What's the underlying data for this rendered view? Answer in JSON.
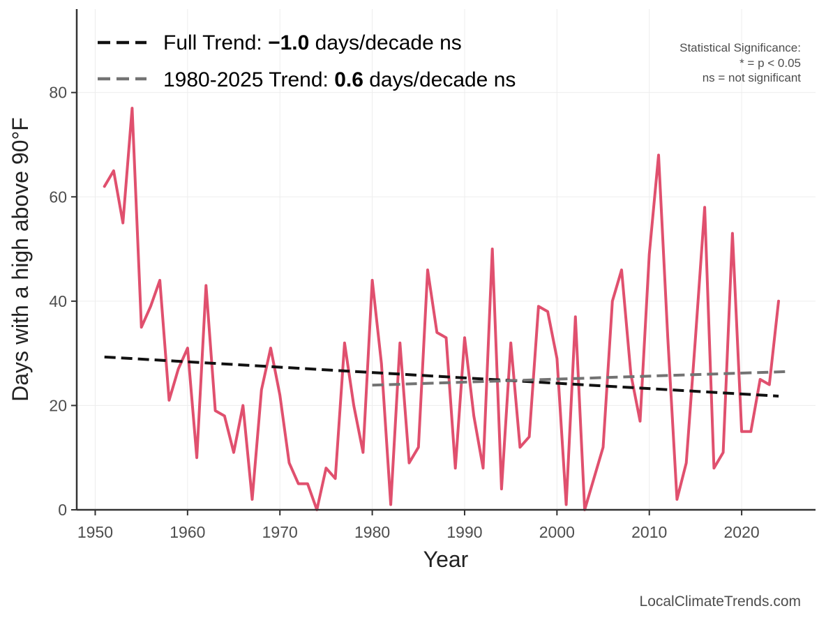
{
  "chart_data": {
    "type": "line",
    "xlabel": "Year",
    "ylabel": "Days with a high above 90°F",
    "xlim": [
      1948,
      2028
    ],
    "ylim": [
      0,
      96
    ],
    "x_ticks": [
      1950,
      1960,
      1970,
      1980,
      1990,
      2000,
      2010,
      2020
    ],
    "y_ticks": [
      0,
      20,
      40,
      60,
      80
    ],
    "grid": true,
    "series": [
      {
        "name": "Days with a high above 90°F",
        "color": "#e0506e",
        "x": [
          1951,
          1952,
          1953,
          1954,
          1955,
          1956,
          1957,
          1958,
          1959,
          1960,
          1961,
          1962,
          1963,
          1964,
          1965,
          1966,
          1967,
          1968,
          1969,
          1970,
          1971,
          1972,
          1973,
          1974,
          1975,
          1976,
          1977,
          1978,
          1979,
          1980,
          1981,
          1982,
          1983,
          1984,
          1985,
          1986,
          1987,
          1988,
          1989,
          1990,
          1991,
          1992,
          1993,
          1994,
          1995,
          1996,
          1997,
          1998,
          1999,
          2000,
          2001,
          2002,
          2003,
          2004,
          2005,
          2006,
          2007,
          2008,
          2009,
          2010,
          2011,
          2012,
          2013,
          2014,
          2015,
          2016,
          2017,
          2018,
          2019,
          2020,
          2021,
          2022,
          2023,
          2024
        ],
        "values": [
          62,
          65,
          55,
          77,
          35,
          39,
          44,
          21,
          27,
          31,
          10,
          43,
          19,
          18,
          11,
          20,
          2,
          23,
          31,
          22,
          9,
          5,
          5,
          0,
          8,
          6,
          32,
          20,
          11,
          44,
          28,
          1,
          32,
          9,
          12,
          46,
          34,
          33,
          8,
          33,
          18,
          8,
          50,
          4,
          32,
          12,
          14,
          39,
          38,
          29,
          1,
          37,
          0,
          6,
          12,
          40,
          46,
          26,
          17,
          49,
          68,
          33,
          2,
          9,
          33,
          58,
          8,
          11,
          53,
          15,
          15,
          25,
          24,
          40
        ]
      }
    ],
    "trends": [
      {
        "name": "Full Trend",
        "legend_prefix": "Full Trend: ",
        "value_text": "−1.0",
        "legend_suffix": " days/decade ns",
        "color": "#111111",
        "x": [
          1951,
          2024
        ],
        "values": [
          29.3,
          21.8
        ]
      },
      {
        "name": "1980-2025 Trend",
        "legend_prefix": "1980-2025 Trend: ",
        "value_text": "0.6",
        "legend_suffix": " days/decade ns",
        "color": "#737373",
        "x": [
          1980,
          2025
        ],
        "values": [
          23.9,
          26.5
        ]
      }
    ],
    "legend_position": "top-left",
    "significance_note": {
      "title": "Statistical Significance:",
      "line1": "* = p < 0.05",
      "line2": "ns = not significant"
    }
  },
  "caption": "LocalClimateTrends.com"
}
